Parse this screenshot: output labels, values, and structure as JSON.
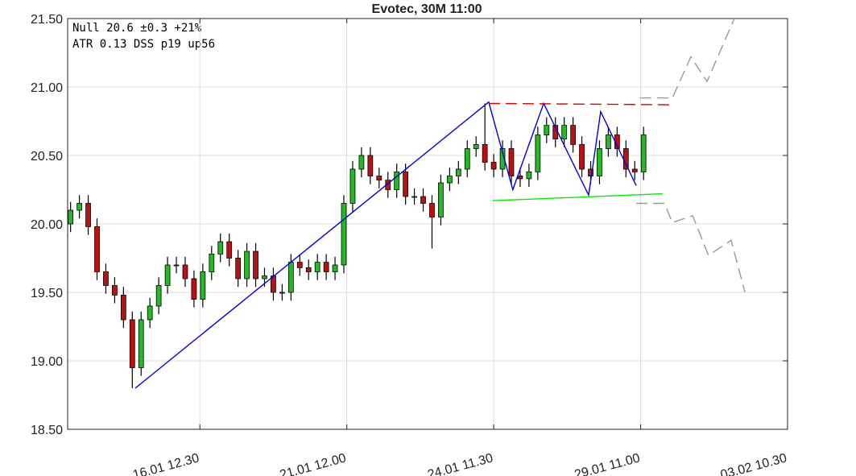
{
  "chart_data": {
    "type": "candlestick",
    "title": "Evotec, 30M 11:00",
    "annotations": [
      "Null 20.6 ±0.3 +21%",
      "ATR  0.13 DSS p19 up56"
    ],
    "up_color": "#22bb22",
    "down_color": "#bb1111",
    "grid": true,
    "xlim": [
      0,
      245
    ],
    "xticks": [
      {
        "value": 45,
        "label": "16.01 12.30"
      },
      {
        "value": 95,
        "label": "21.01 12.00"
      },
      {
        "value": 145,
        "label": "24.01 11.30"
      },
      {
        "value": 195,
        "label": "29.01 11.00"
      },
      {
        "value": 245,
        "label": "03.02 10.30"
      }
    ],
    "ylim": [
      18.5,
      21.5
    ],
    "yticks": [
      {
        "value": 18.5,
        "label": "18.50"
      },
      {
        "value": 19,
        "label": "19.00"
      },
      {
        "value": 19.5,
        "label": "19.50"
      },
      {
        "value": 20,
        "label": "20.00"
      },
      {
        "value": 20.5,
        "label": "20.50"
      },
      {
        "value": 21,
        "label": "21.00"
      },
      {
        "value": 21.5,
        "label": "21.50"
      }
    ],
    "x": [
      1,
      4,
      7,
      10,
      13,
      16,
      19,
      22,
      25,
      28,
      31,
      34,
      37,
      40,
      43,
      46,
      49,
      52,
      55,
      58,
      61,
      64,
      67,
      70,
      73,
      76,
      79,
      82,
      85,
      88,
      91,
      94,
      97,
      100,
      103,
      106,
      109,
      112,
      115,
      118,
      121,
      124,
      127,
      130,
      133,
      136,
      139,
      142,
      145,
      148,
      151,
      154,
      157,
      160,
      163,
      166,
      169,
      172,
      175,
      178,
      181,
      184,
      187,
      190,
      193,
      196
    ],
    "open": [
      20.0,
      20.1,
      20.15,
      19.98,
      19.65,
      19.55,
      19.48,
      19.3,
      18.95,
      19.3,
      19.4,
      19.55,
      19.7,
      19.7,
      19.6,
      19.45,
      19.65,
      19.78,
      19.87,
      19.75,
      19.6,
      19.8,
      19.6,
      19.62,
      19.5,
      19.5,
      19.72,
      19.68,
      19.65,
      19.72,
      19.65,
      19.7,
      20.15,
      20.4,
      20.5,
      20.35,
      20.32,
      20.25,
      20.38,
      20.2,
      20.2,
      20.15,
      20.05,
      20.3,
      20.35,
      20.4,
      20.55,
      20.58,
      20.45,
      20.4,
      20.55,
      20.35,
      20.33,
      20.38,
      20.65,
      20.72,
      20.62,
      20.72,
      20.58,
      20.4,
      20.35,
      20.55,
      20.65,
      20.55,
      20.4,
      20.38
    ],
    "high": [
      20.16,
      20.21,
      20.21,
      20.04,
      19.71,
      19.61,
      19.54,
      19.36,
      19.36,
      19.46,
      19.61,
      19.76,
      19.76,
      19.76,
      19.66,
      19.71,
      19.84,
      19.93,
      19.93,
      19.81,
      19.86,
      19.86,
      19.68,
      19.68,
      19.56,
      19.78,
      19.78,
      19.74,
      19.78,
      19.78,
      19.76,
      20.21,
      20.46,
      20.56,
      20.56,
      20.41,
      20.38,
      20.44,
      20.44,
      20.26,
      20.26,
      20.21,
      20.36,
      20.41,
      20.46,
      20.61,
      20.64,
      20.88,
      20.51,
      20.61,
      20.61,
      20.41,
      20.44,
      20.71,
      20.78,
      20.78,
      20.78,
      20.78,
      20.64,
      20.46,
      20.61,
      20.71,
      20.71,
      20.61,
      20.46,
      20.71
    ],
    "low": [
      19.94,
      20.04,
      19.92,
      19.59,
      19.49,
      19.42,
      19.24,
      18.8,
      18.89,
      19.24,
      19.34,
      19.49,
      19.64,
      19.54,
      19.39,
      19.39,
      19.59,
      19.72,
      19.69,
      19.54,
      19.54,
      19.54,
      19.54,
      19.44,
      19.44,
      19.44,
      19.62,
      19.59,
      19.59,
      19.59,
      19.59,
      19.64,
      20.09,
      20.34,
      20.29,
      20.26,
      20.19,
      20.19,
      20.14,
      20.14,
      20.09,
      19.82,
      19.99,
      20.24,
      20.29,
      20.34,
      20.49,
      20.39,
      20.34,
      20.34,
      20.29,
      20.27,
      20.27,
      20.32,
      20.59,
      20.56,
      20.56,
      20.52,
      20.34,
      20.29,
      20.29,
      20.49,
      20.49,
      20.34,
      20.32,
      20.32
    ],
    "close": [
      20.1,
      20.15,
      19.98,
      19.65,
      19.55,
      19.48,
      19.3,
      18.95,
      19.3,
      19.4,
      19.55,
      19.7,
      19.7,
      19.6,
      19.45,
      19.65,
      19.78,
      19.87,
      19.75,
      19.6,
      19.8,
      19.6,
      19.62,
      19.5,
      19.5,
      19.72,
      19.68,
      19.65,
      19.72,
      19.65,
      19.7,
      20.15,
      20.4,
      20.5,
      20.35,
      20.32,
      20.25,
      20.38,
      20.2,
      20.2,
      20.15,
      20.05,
      20.3,
      20.35,
      20.4,
      20.55,
      20.58,
      20.45,
      20.4,
      20.55,
      20.35,
      20.33,
      20.38,
      20.65,
      20.72,
      20.62,
      20.72,
      20.58,
      20.4,
      20.35,
      20.55,
      20.65,
      20.55,
      20.4,
      20.38,
      20.65
    ],
    "lines": [
      {
        "color": "#0000dd",
        "dash": false,
        "x": [
          23.0,
          143.3,
          151.5,
          162.0,
          177.3,
          181.4,
          193.5
        ],
        "y": [
          18.8,
          20.89,
          20.25,
          20.88,
          20.21,
          20.82,
          20.28
        ]
      },
      {
        "color": "#dd0000",
        "dash": true,
        "x": [
          143.3,
          206.6
        ],
        "y": [
          20.88,
          20.87
        ]
      },
      {
        "color": "#00ee00",
        "dash": false,
        "x": [
          144.7,
          202.5
        ],
        "y": [
          20.17,
          20.22
        ]
      },
      {
        "color": "#999999",
        "dash": true,
        "x": [
          194.8,
          205.8,
          212.1,
          217.6,
          226.9
        ],
        "y": [
          20.92,
          20.92,
          21.22,
          21.04,
          21.5
        ]
      },
      {
        "color": "#999999",
        "dash": true,
        "x": [
          193.5,
          203.1,
          205.8,
          212.7,
          218.1,
          225.8,
          230.5
        ],
        "y": [
          20.15,
          20.15,
          20.01,
          20.06,
          19.77,
          19.88,
          19.5
        ]
      }
    ]
  }
}
